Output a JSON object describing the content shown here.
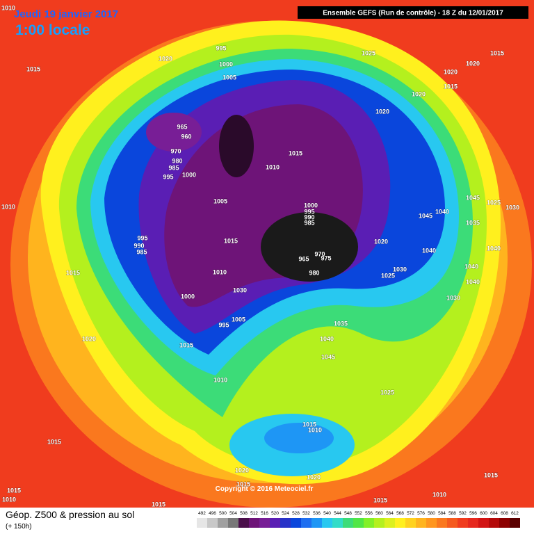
{
  "header": {
    "date": "Jeudi 19 janvier 2017",
    "time": "1:00 locale",
    "run": "Ensemble GEFS  (Run de contrôle)  -  18 Z du 12/01/2017"
  },
  "footer": {
    "title": "Géop. Z500 & pression au sol",
    "lead": "(+ 150h)",
    "copyright": "Copyright © 2016 Meteociel.fr"
  },
  "legend": {
    "levels": [
      492,
      496,
      500,
      504,
      508,
      512,
      516,
      520,
      524,
      528,
      532,
      536,
      540,
      544,
      548,
      552,
      556,
      560,
      564,
      568,
      572,
      576,
      580,
      584,
      588,
      592,
      596,
      600,
      604,
      608,
      612
    ],
    "colors": [
      "#e6e6e6",
      "#c8c8c8",
      "#a0a0a0",
      "#787878",
      "#4b0f4b",
      "#6e1478",
      "#781e96",
      "#5a1eb4",
      "#2832c8",
      "#0a46dc",
      "#1e6ef0",
      "#1e96f5",
      "#28c8f0",
      "#32dcc8",
      "#3cdc78",
      "#50e646",
      "#82f028",
      "#b4f01e",
      "#dcf01e",
      "#fff01e",
      "#ffd21e",
      "#ffb41e",
      "#ff961e",
      "#fa781e",
      "#f55a1e",
      "#f03c1e",
      "#e6281e",
      "#d21414",
      "#b40a0a",
      "#8c0000",
      "#5a0000"
    ]
  },
  "isobar_labels": [
    "1010",
    "1015",
    "1020",
    "995",
    "1000",
    "1005",
    "1025",
    "1015",
    "1020",
    "1020",
    "1015",
    "1020",
    "1020",
    "965",
    "960",
    "970",
    "980",
    "985",
    "995",
    "1000",
    "1015",
    "1010",
    "1005",
    "1000",
    "995",
    "990",
    "985",
    "970",
    "975",
    "965",
    "980",
    "1015",
    "995",
    "990",
    "985",
    "1020",
    "1010",
    "1015",
    "1045",
    "1025",
    "1030",
    "1040",
    "1045",
    "1035",
    "1040",
    "1040",
    "1030",
    "1025",
    "1040",
    "1040",
    "1030",
    "1010",
    "1030",
    "1000",
    "1005",
    "995",
    "1035",
    "1040",
    "1020",
    "1015",
    "1045",
    "1010",
    "1025",
    "1015",
    "1010",
    "1015",
    "1020",
    "1015",
    "1020",
    "1015",
    "1015",
    "1010",
    "1015",
    "1015",
    "1010"
  ]
}
